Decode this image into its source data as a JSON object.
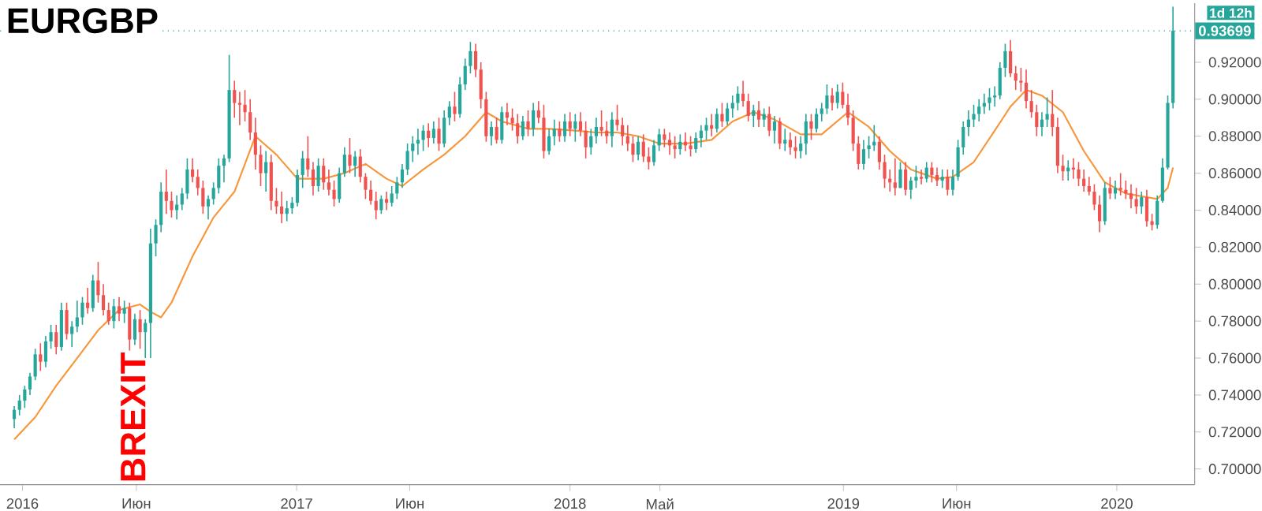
{
  "chart_data": {
    "type": "candlestick",
    "title": "EURGBP",
    "x": [
      "2015-12-21",
      "2015-12-28",
      "2016-01-04",
      "2016-01-11",
      "2016-01-18",
      "2016-01-25",
      "2016-02-01",
      "2016-02-08",
      "2016-02-15",
      "2016-02-22",
      "2016-02-29",
      "2016-03-07",
      "2016-03-14",
      "2016-03-21",
      "2016-03-28",
      "2016-04-04",
      "2016-04-11",
      "2016-04-18",
      "2016-04-25",
      "2016-05-02",
      "2016-05-09",
      "2016-05-16",
      "2016-05-23",
      "2016-05-30",
      "2016-06-06",
      "2016-06-13",
      "2016-06-20",
      "2016-06-27",
      "2016-07-04",
      "2016-07-11",
      "2016-07-18",
      "2016-07-25",
      "2016-08-01",
      "2016-08-08",
      "2016-08-15",
      "2016-08-22",
      "2016-08-29",
      "2016-09-05",
      "2016-09-12",
      "2016-09-19",
      "2016-09-26",
      "2016-10-03",
      "2016-10-10",
      "2016-10-17",
      "2016-10-24",
      "2016-10-31",
      "2016-11-07",
      "2016-11-14",
      "2016-11-21",
      "2016-11-28",
      "2016-12-05",
      "2016-12-12",
      "2016-12-19",
      "2016-12-26",
      "2017-01-02",
      "2017-01-09",
      "2017-01-16",
      "2017-01-23",
      "2017-01-30",
      "2017-02-06",
      "2017-02-13",
      "2017-02-20",
      "2017-02-27",
      "2017-03-06",
      "2017-03-13",
      "2017-03-20",
      "2017-03-27",
      "2017-04-03",
      "2017-04-10",
      "2017-04-17",
      "2017-04-24",
      "2017-05-01",
      "2017-05-08",
      "2017-05-15",
      "2017-05-22",
      "2017-05-29",
      "2017-06-05",
      "2017-06-12",
      "2017-06-19",
      "2017-06-26",
      "2017-07-03",
      "2017-07-10",
      "2017-07-17",
      "2017-07-24",
      "2017-07-31",
      "2017-08-07",
      "2017-08-14",
      "2017-08-21",
      "2017-08-28",
      "2017-09-04",
      "2017-09-11",
      "2017-09-18",
      "2017-09-25",
      "2017-10-02",
      "2017-10-09",
      "2017-10-16",
      "2017-10-23",
      "2017-10-30",
      "2017-11-06",
      "2017-11-13",
      "2017-11-20",
      "2017-11-27",
      "2017-12-04",
      "2017-12-11",
      "2017-12-18",
      "2017-12-25",
      "2018-01-01",
      "2018-01-08",
      "2018-01-15",
      "2018-01-22",
      "2018-01-29",
      "2018-02-05",
      "2018-02-12",
      "2018-02-19",
      "2018-02-26",
      "2018-03-05",
      "2018-03-12",
      "2018-03-19",
      "2018-03-26",
      "2018-04-02",
      "2018-04-09",
      "2018-04-16",
      "2018-04-23",
      "2018-04-30",
      "2018-05-07",
      "2018-05-14",
      "2018-05-21",
      "2018-05-28",
      "2018-06-04",
      "2018-06-11",
      "2018-06-18",
      "2018-06-25",
      "2018-07-02",
      "2018-07-09",
      "2018-07-16",
      "2018-07-23",
      "2018-07-30",
      "2018-08-06",
      "2018-08-13",
      "2018-08-20",
      "2018-08-27",
      "2018-09-03",
      "2018-09-10",
      "2018-09-17",
      "2018-09-24",
      "2018-10-01",
      "2018-10-08",
      "2018-10-15",
      "2018-10-22",
      "2018-10-29",
      "2018-11-05",
      "2018-11-12",
      "2018-11-19",
      "2018-11-26",
      "2018-12-03",
      "2018-12-10",
      "2018-12-17",
      "2018-12-24",
      "2018-12-31",
      "2019-01-07",
      "2019-01-14",
      "2019-01-21",
      "2019-01-28",
      "2019-02-04",
      "2019-02-11",
      "2019-02-18",
      "2019-02-25",
      "2019-03-04",
      "2019-03-11",
      "2019-03-18",
      "2019-03-25",
      "2019-04-01",
      "2019-04-08",
      "2019-04-15",
      "2019-04-22",
      "2019-04-29",
      "2019-05-06",
      "2019-05-13",
      "2019-05-20",
      "2019-05-27",
      "2019-06-03",
      "2019-06-10",
      "2019-06-17",
      "2019-06-24",
      "2019-07-01",
      "2019-07-08",
      "2019-07-15",
      "2019-07-22",
      "2019-07-29",
      "2019-08-05",
      "2019-08-12",
      "2019-08-19",
      "2019-08-26",
      "2019-09-02",
      "2019-09-09",
      "2019-09-16",
      "2019-09-23",
      "2019-09-30",
      "2019-10-07",
      "2019-10-14",
      "2019-10-21",
      "2019-10-28",
      "2019-11-04",
      "2019-11-11",
      "2019-11-18",
      "2019-11-25",
      "2019-12-02",
      "2019-12-09",
      "2019-12-16",
      "2019-12-23",
      "2019-12-30",
      "2020-01-06",
      "2020-01-13",
      "2020-01-20",
      "2020-01-27",
      "2020-02-03",
      "2020-02-10",
      "2020-02-17",
      "2020-02-24",
      "2020-03-02",
      "2020-03-09",
      "2020-03-16"
    ],
    "ohlc": [
      [
        0.727,
        0.734,
        0.722,
        0.732
      ],
      [
        0.732,
        0.74,
        0.729,
        0.737
      ],
      [
        0.737,
        0.745,
        0.733,
        0.743
      ],
      [
        0.743,
        0.752,
        0.74,
        0.75
      ],
      [
        0.75,
        0.765,
        0.748,
        0.762
      ],
      [
        0.762,
        0.768,
        0.753,
        0.758
      ],
      [
        0.758,
        0.772,
        0.755,
        0.769
      ],
      [
        0.769,
        0.778,
        0.765,
        0.774
      ],
      [
        0.774,
        0.778,
        0.762,
        0.766
      ],
      [
        0.766,
        0.79,
        0.764,
        0.786
      ],
      [
        0.786,
        0.79,
        0.77,
        0.773
      ],
      [
        0.773,
        0.78,
        0.766,
        0.777
      ],
      [
        0.777,
        0.791,
        0.774,
        0.782
      ],
      [
        0.782,
        0.793,
        0.778,
        0.79
      ],
      [
        0.79,
        0.798,
        0.784,
        0.787
      ],
      [
        0.787,
        0.805,
        0.785,
        0.802
      ],
      [
        0.802,
        0.812,
        0.79,
        0.794
      ],
      [
        0.794,
        0.8,
        0.783,
        0.786
      ],
      [
        0.786,
        0.79,
        0.778,
        0.78
      ],
      [
        0.78,
        0.792,
        0.776,
        0.788
      ],
      [
        0.788,
        0.793,
        0.78,
        0.784
      ],
      [
        0.784,
        0.791,
        0.779,
        0.787
      ],
      [
        0.787,
        0.79,
        0.764,
        0.77
      ],
      [
        0.77,
        0.784,
        0.767,
        0.781
      ],
      [
        0.781,
        0.786,
        0.765,
        0.774
      ],
      [
        0.774,
        0.781,
        0.76,
        0.779
      ],
      [
        0.779,
        0.83,
        0.76,
        0.822
      ],
      [
        0.822,
        0.835,
        0.815,
        0.832
      ],
      [
        0.832,
        0.855,
        0.828,
        0.85
      ],
      [
        0.85,
        0.862,
        0.838,
        0.845
      ],
      [
        0.845,
        0.85,
        0.836,
        0.84
      ],
      [
        0.84,
        0.848,
        0.835,
        0.843
      ],
      [
        0.843,
        0.852,
        0.84,
        0.849
      ],
      [
        0.849,
        0.868,
        0.846,
        0.862
      ],
      [
        0.862,
        0.868,
        0.855,
        0.858
      ],
      [
        0.858,
        0.862,
        0.848,
        0.852
      ],
      [
        0.852,
        0.856,
        0.838,
        0.842
      ],
      [
        0.842,
        0.848,
        0.835,
        0.846
      ],
      [
        0.846,
        0.855,
        0.843,
        0.852
      ],
      [
        0.852,
        0.868,
        0.849,
        0.864
      ],
      [
        0.864,
        0.87,
        0.855,
        0.868
      ],
      [
        0.868,
        0.924,
        0.866,
        0.905
      ],
      [
        0.905,
        0.91,
        0.89,
        0.898
      ],
      [
        0.898,
        0.904,
        0.886,
        0.897
      ],
      [
        0.897,
        0.905,
        0.888,
        0.893
      ],
      [
        0.893,
        0.9,
        0.878,
        0.882
      ],
      [
        0.882,
        0.89,
        0.862,
        0.87
      ],
      [
        0.87,
        0.875,
        0.853,
        0.86
      ],
      [
        0.86,
        0.872,
        0.85,
        0.866
      ],
      [
        0.866,
        0.87,
        0.84,
        0.845
      ],
      [
        0.845,
        0.852,
        0.838,
        0.842
      ],
      [
        0.842,
        0.85,
        0.833,
        0.838
      ],
      [
        0.838,
        0.845,
        0.834,
        0.841
      ],
      [
        0.841,
        0.847,
        0.838,
        0.844
      ],
      [
        0.844,
        0.862,
        0.842,
        0.859
      ],
      [
        0.859,
        0.872,
        0.852,
        0.868
      ],
      [
        0.868,
        0.88,
        0.858,
        0.862
      ],
      [
        0.862,
        0.866,
        0.848,
        0.853
      ],
      [
        0.853,
        0.868,
        0.85,
        0.864
      ],
      [
        0.864,
        0.868,
        0.851,
        0.855
      ],
      [
        0.855,
        0.862,
        0.848,
        0.851
      ],
      [
        0.851,
        0.856,
        0.842,
        0.846
      ],
      [
        0.846,
        0.863,
        0.844,
        0.86
      ],
      [
        0.86,
        0.874,
        0.858,
        0.87
      ],
      [
        0.87,
        0.879,
        0.86,
        0.864
      ],
      [
        0.864,
        0.872,
        0.858,
        0.869
      ],
      [
        0.869,
        0.873,
        0.855,
        0.858
      ],
      [
        0.858,
        0.86,
        0.846,
        0.851
      ],
      [
        0.851,
        0.856,
        0.843,
        0.845
      ],
      [
        0.845,
        0.85,
        0.835,
        0.84
      ],
      [
        0.84,
        0.848,
        0.838,
        0.846
      ],
      [
        0.846,
        0.85,
        0.84,
        0.844
      ],
      [
        0.844,
        0.853,
        0.842,
        0.849
      ],
      [
        0.849,
        0.858,
        0.846,
        0.855
      ],
      [
        0.855,
        0.865,
        0.852,
        0.862
      ],
      [
        0.862,
        0.876,
        0.859,
        0.872
      ],
      [
        0.872,
        0.88,
        0.866,
        0.876
      ],
      [
        0.876,
        0.884,
        0.87,
        0.878
      ],
      [
        0.878,
        0.886,
        0.872,
        0.883
      ],
      [
        0.883,
        0.887,
        0.874,
        0.879
      ],
      [
        0.879,
        0.888,
        0.876,
        0.884
      ],
      [
        0.884,
        0.89,
        0.872,
        0.876
      ],
      [
        0.876,
        0.894,
        0.874,
        0.89
      ],
      [
        0.89,
        0.899,
        0.886,
        0.896
      ],
      [
        0.896,
        0.904,
        0.888,
        0.892
      ],
      [
        0.892,
        0.912,
        0.89,
        0.908
      ],
      [
        0.908,
        0.922,
        0.905,
        0.918
      ],
      [
        0.918,
        0.931,
        0.914,
        0.926
      ],
      [
        0.926,
        0.93,
        0.912,
        0.916
      ],
      [
        0.916,
        0.92,
        0.895,
        0.9
      ],
      [
        0.9,
        0.904,
        0.877,
        0.88
      ],
      [
        0.88,
        0.888,
        0.875,
        0.885
      ],
      [
        0.885,
        0.89,
        0.876,
        0.878
      ],
      [
        0.878,
        0.896,
        0.876,
        0.893
      ],
      [
        0.893,
        0.898,
        0.886,
        0.89
      ],
      [
        0.89,
        0.895,
        0.883,
        0.887
      ],
      [
        0.887,
        0.892,
        0.876,
        0.88
      ],
      [
        0.88,
        0.891,
        0.878,
        0.888
      ],
      [
        0.888,
        0.894,
        0.88,
        0.884
      ],
      [
        0.884,
        0.898,
        0.88,
        0.894
      ],
      [
        0.894,
        0.899,
        0.887,
        0.89
      ],
      [
        0.89,
        0.897,
        0.868,
        0.872
      ],
      [
        0.872,
        0.884,
        0.87,
        0.88
      ],
      [
        0.88,
        0.889,
        0.875,
        0.884
      ],
      [
        0.884,
        0.888,
        0.877,
        0.88
      ],
      [
        0.88,
        0.892,
        0.877,
        0.888
      ],
      [
        0.888,
        0.893,
        0.88,
        0.884
      ],
      [
        0.884,
        0.892,
        0.877,
        0.888
      ],
      [
        0.888,
        0.893,
        0.88,
        0.883
      ],
      [
        0.883,
        0.888,
        0.868,
        0.874
      ],
      [
        0.874,
        0.884,
        0.87,
        0.88
      ],
      [
        0.88,
        0.89,
        0.876,
        0.885
      ],
      [
        0.885,
        0.894,
        0.88,
        0.883
      ],
      [
        0.883,
        0.888,
        0.876,
        0.88
      ],
      [
        0.88,
        0.893,
        0.874,
        0.889
      ],
      [
        0.889,
        0.897,
        0.883,
        0.886
      ],
      [
        0.886,
        0.89,
        0.875,
        0.88
      ],
      [
        0.88,
        0.886,
        0.872,
        0.876
      ],
      [
        0.876,
        0.88,
        0.866,
        0.87
      ],
      [
        0.87,
        0.88,
        0.867,
        0.877
      ],
      [
        0.877,
        0.881,
        0.866,
        0.869
      ],
      [
        0.869,
        0.874,
        0.862,
        0.866
      ],
      [
        0.866,
        0.878,
        0.864,
        0.875
      ],
      [
        0.875,
        0.884,
        0.872,
        0.881
      ],
      [
        0.881,
        0.884,
        0.874,
        0.878
      ],
      [
        0.878,
        0.882,
        0.87,
        0.875
      ],
      [
        0.875,
        0.88,
        0.868,
        0.873
      ],
      [
        0.873,
        0.881,
        0.87,
        0.877
      ],
      [
        0.877,
        0.882,
        0.872,
        0.875
      ],
      [
        0.875,
        0.88,
        0.869,
        0.873
      ],
      [
        0.873,
        0.882,
        0.871,
        0.879
      ],
      [
        0.879,
        0.886,
        0.874,
        0.883
      ],
      [
        0.883,
        0.89,
        0.878,
        0.886
      ],
      [
        0.886,
        0.892,
        0.88,
        0.884
      ],
      [
        0.884,
        0.895,
        0.882,
        0.892
      ],
      [
        0.892,
        0.898,
        0.885,
        0.888
      ],
      [
        0.888,
        0.898,
        0.886,
        0.895
      ],
      [
        0.895,
        0.902,
        0.89,
        0.898
      ],
      [
        0.898,
        0.907,
        0.894,
        0.903
      ],
      [
        0.903,
        0.91,
        0.896,
        0.899
      ],
      [
        0.899,
        0.903,
        0.888,
        0.891
      ],
      [
        0.891,
        0.897,
        0.885,
        0.894
      ],
      [
        0.894,
        0.899,
        0.885,
        0.889
      ],
      [
        0.889,
        0.895,
        0.885,
        0.892
      ],
      [
        0.892,
        0.896,
        0.88,
        0.883
      ],
      [
        0.883,
        0.891,
        0.876,
        0.888
      ],
      [
        0.888,
        0.89,
        0.873,
        0.876
      ],
      [
        0.876,
        0.884,
        0.872,
        0.878
      ],
      [
        0.878,
        0.882,
        0.87,
        0.874
      ],
      [
        0.874,
        0.88,
        0.868,
        0.872
      ],
      [
        0.872,
        0.88,
        0.868,
        0.876
      ],
      [
        0.876,
        0.892,
        0.87,
        0.888
      ],
      [
        0.888,
        0.892,
        0.878,
        0.884
      ],
      [
        0.884,
        0.895,
        0.882,
        0.892
      ],
      [
        0.892,
        0.898,
        0.888,
        0.895
      ],
      [
        0.895,
        0.908,
        0.892,
        0.902
      ],
      [
        0.902,
        0.906,
        0.894,
        0.898
      ],
      [
        0.898,
        0.908,
        0.895,
        0.904
      ],
      [
        0.904,
        0.909,
        0.895,
        0.897
      ],
      [
        0.897,
        0.903,
        0.886,
        0.89
      ],
      [
        0.89,
        0.894,
        0.872,
        0.876
      ],
      [
        0.876,
        0.88,
        0.862,
        0.865
      ],
      [
        0.865,
        0.878,
        0.862,
        0.873
      ],
      [
        0.873,
        0.88,
        0.868,
        0.875
      ],
      [
        0.875,
        0.886,
        0.872,
        0.877
      ],
      [
        0.877,
        0.88,
        0.862,
        0.866
      ],
      [
        0.866,
        0.87,
        0.852,
        0.857
      ],
      [
        0.857,
        0.862,
        0.85,
        0.855
      ],
      [
        0.855,
        0.868,
        0.848,
        0.852
      ],
      [
        0.852,
        0.866,
        0.852,
        0.862
      ],
      [
        0.862,
        0.866,
        0.848,
        0.851
      ],
      [
        0.851,
        0.858,
        0.846,
        0.856
      ],
      [
        0.856,
        0.864,
        0.852,
        0.858
      ],
      [
        0.858,
        0.862,
        0.854,
        0.857
      ],
      [
        0.857,
        0.866,
        0.855,
        0.863
      ],
      [
        0.863,
        0.866,
        0.855,
        0.859
      ],
      [
        0.859,
        0.863,
        0.853,
        0.856
      ],
      [
        0.856,
        0.862,
        0.852,
        0.858
      ],
      [
        0.858,
        0.862,
        0.848,
        0.851
      ],
      [
        0.851,
        0.862,
        0.848,
        0.858
      ],
      [
        0.858,
        0.878,
        0.856,
        0.874
      ],
      [
        0.874,
        0.888,
        0.87,
        0.885
      ],
      [
        0.885,
        0.894,
        0.88,
        0.889
      ],
      [
        0.889,
        0.897,
        0.885,
        0.892
      ],
      [
        0.892,
        0.9,
        0.888,
        0.896
      ],
      [
        0.896,
        0.903,
        0.892,
        0.898
      ],
      [
        0.898,
        0.906,
        0.894,
        0.901
      ],
      [
        0.901,
        0.907,
        0.896,
        0.902
      ],
      [
        0.902,
        0.92,
        0.9,
        0.917
      ],
      [
        0.917,
        0.93,
        0.912,
        0.926
      ],
      [
        0.926,
        0.932,
        0.912,
        0.914
      ],
      [
        0.914,
        0.918,
        0.905,
        0.91
      ],
      [
        0.91,
        0.917,
        0.904,
        0.909
      ],
      [
        0.909,
        0.916,
        0.895,
        0.899
      ],
      [
        0.899,
        0.905,
        0.89,
        0.893
      ],
      [
        0.893,
        0.897,
        0.88,
        0.885
      ],
      [
        0.885,
        0.893,
        0.88,
        0.889
      ],
      [
        0.889,
        0.901,
        0.885,
        0.892
      ],
      [
        0.892,
        0.905,
        0.88,
        0.885
      ],
      [
        0.885,
        0.89,
        0.86,
        0.864
      ],
      [
        0.864,
        0.87,
        0.856,
        0.861
      ],
      [
        0.861,
        0.867,
        0.856,
        0.863
      ],
      [
        0.863,
        0.868,
        0.857,
        0.862
      ],
      [
        0.862,
        0.866,
        0.853,
        0.857
      ],
      [
        0.857,
        0.862,
        0.85,
        0.853
      ],
      [
        0.853,
        0.858,
        0.848,
        0.85
      ],
      [
        0.85,
        0.854,
        0.84,
        0.843
      ],
      [
        0.843,
        0.848,
        0.828,
        0.834
      ],
      [
        0.834,
        0.855,
        0.832,
        0.852
      ],
      [
        0.852,
        0.858,
        0.846,
        0.849
      ],
      [
        0.849,
        0.856,
        0.846,
        0.852
      ],
      [
        0.852,
        0.86,
        0.848,
        0.851
      ],
      [
        0.851,
        0.856,
        0.846,
        0.849
      ],
      [
        0.849,
        0.854,
        0.841,
        0.846
      ],
      [
        0.846,
        0.852,
        0.838,
        0.842
      ],
      [
        0.842,
        0.85,
        0.838,
        0.847
      ],
      [
        0.847,
        0.851,
        0.831,
        0.834
      ],
      [
        0.834,
        0.838,
        0.829,
        0.832
      ],
      [
        0.832,
        0.848,
        0.83,
        0.845
      ],
      [
        0.845,
        0.868,
        0.844,
        0.863
      ],
      [
        0.863,
        0.902,
        0.862,
        0.898
      ],
      [
        0.898,
        0.95,
        0.895,
        0.93699
      ]
    ],
    "series": [
      {
        "type": "line",
        "color": "#f7963a",
        "x": [
          "2015-12-21",
          "2016-01-18",
          "2016-02-15",
          "2016-03-14",
          "2016-04-11",
          "2016-05-09",
          "2016-06-06",
          "2016-06-20",
          "2016-07-04",
          "2016-07-18",
          "2016-08-15",
          "2016-09-12",
          "2016-10-10",
          "2016-11-07",
          "2016-12-05",
          "2017-01-02",
          "2017-02-06",
          "2017-03-06",
          "2017-04-03",
          "2017-05-01",
          "2017-05-22",
          "2017-06-19",
          "2017-07-17",
          "2017-08-14",
          "2017-09-11",
          "2017-10-02",
          "2017-11-06",
          "2017-12-04",
          "2018-01-08",
          "2018-02-05",
          "2018-03-05",
          "2018-04-02",
          "2018-04-30",
          "2018-06-04",
          "2018-07-09",
          "2018-08-06",
          "2018-09-03",
          "2018-10-01",
          "2018-11-05",
          "2018-12-03",
          "2019-01-07",
          "2019-02-04",
          "2019-03-04",
          "2019-04-01",
          "2019-05-06",
          "2019-05-27",
          "2019-06-24",
          "2019-07-22",
          "2019-08-12",
          "2019-09-02",
          "2019-09-23",
          "2019-10-21",
          "2019-11-18",
          "2019-12-16",
          "2020-01-13",
          "2020-02-10",
          "2020-02-24",
          "2020-03-09",
          "2020-03-16"
        ],
        "values": [
          0.716,
          0.728,
          0.745,
          0.76,
          0.775,
          0.786,
          0.789,
          0.785,
          0.782,
          0.79,
          0.815,
          0.836,
          0.85,
          0.88,
          0.87,
          0.857,
          0.857,
          0.86,
          0.865,
          0.857,
          0.853,
          0.862,
          0.87,
          0.88,
          0.893,
          0.888,
          0.884,
          0.884,
          0.883,
          0.882,
          0.882,
          0.88,
          0.876,
          0.876,
          0.878,
          0.888,
          0.893,
          0.889,
          0.881,
          0.881,
          0.893,
          0.885,
          0.872,
          0.862,
          0.857,
          0.858,
          0.866,
          0.883,
          0.896,
          0.905,
          0.902,
          0.893,
          0.872,
          0.855,
          0.849,
          0.847,
          0.846,
          0.852,
          0.863
        ]
      }
    ],
    "xlim": [
      "2015-12-02",
      "2020-04-14"
    ],
    "xticks": [
      {
        "value": "2016-01-01",
        "label": "2016"
      },
      {
        "value": "2016-06-01",
        "label": "Июн"
      },
      {
        "value": "2017-01-01",
        "label": "2017"
      },
      {
        "value": "2017-06-01",
        "label": "Июн"
      },
      {
        "value": "2018-01-01",
        "label": "2018"
      },
      {
        "value": "2018-05-01",
        "label": "Май"
      },
      {
        "value": "2019-01-01",
        "label": "2019"
      },
      {
        "value": "2019-06-01",
        "label": "Июн"
      },
      {
        "value": "2020-01-01",
        "label": "2020"
      }
    ],
    "ylim": [
      0.6915,
      0.952
    ],
    "yticks": [
      {
        "value": 0.7,
        "label": "0.70000"
      },
      {
        "value": 0.72,
        "label": "0.72000"
      },
      {
        "value": 0.74,
        "label": "0.74000"
      },
      {
        "value": 0.76,
        "label": "0.76000"
      },
      {
        "value": 0.78,
        "label": "0.78000"
      },
      {
        "value": 0.8,
        "label": "0.80000"
      },
      {
        "value": 0.82,
        "label": "0.82000"
      },
      {
        "value": 0.84,
        "label": "0.84000"
      },
      {
        "value": 0.86,
        "label": "0.86000"
      },
      {
        "value": 0.88,
        "label": "0.88000"
      },
      {
        "value": 0.9,
        "label": "0.90000"
      },
      {
        "value": 0.92,
        "label": "0.92000"
      }
    ],
    "ref_lines": [
      {
        "axis": "y",
        "value": 0.93699,
        "label": "0.93699",
        "color": "#26a69a",
        "line_style": "dotted"
      }
    ],
    "annotations": [
      "BREXIT",
      "1d 12h"
    ]
  }
}
